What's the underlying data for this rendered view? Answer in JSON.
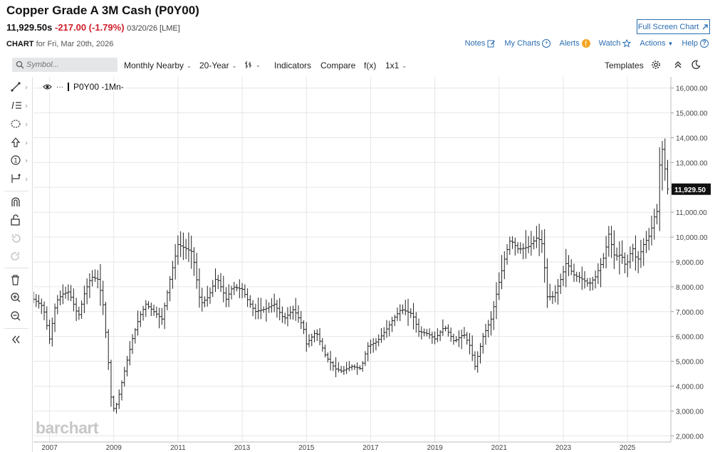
{
  "header": {
    "title": "Copper Grade A 3M Cash (P0Y00)",
    "price": "11,929.50s",
    "change": "-217.00 (-1.79%)",
    "date": "03/20/26 [LME]",
    "fullscreen_label": "Full Screen Chart",
    "chart_for_bold": "CHART",
    "chart_for_text": "for Fri, Mar 20th, 2026"
  },
  "actions": {
    "notes": "Notes",
    "my_charts": "My Charts",
    "alerts": "Alerts",
    "alert_badge": "!",
    "watch": "Watch",
    "actions": "Actions",
    "help": "Help"
  },
  "toolbar": {
    "symbol_placeholder": "Symbol...",
    "period": "Monthly Nearby",
    "range": "20-Year",
    "indicators": "Indicators",
    "compare": "Compare",
    "fx": "f(x)",
    "layout": "1x1",
    "templates": "Templates"
  },
  "series_label": "P0Y00 -1Mn-",
  "logo": "barchart",
  "colors": {
    "link": "#2a6db0",
    "down": "#d0202a",
    "bar": "#222222",
    "grid": "#e6e6e6"
  },
  "chart_data": {
    "type": "ohlc",
    "x_axis_labels": [
      "2007",
      "2009",
      "2011",
      "2013",
      "2015",
      "2017",
      "2019",
      "2021",
      "2023",
      "2025"
    ],
    "y_axis_labels": [
      "16,000.00",
      "15,000.00",
      "14,000.00",
      "13,000.00",
      "12,000.00",
      "11,000.00",
      "10,000.00",
      "9,000.00",
      "8,000.00",
      "7,000.00",
      "6,000.00",
      "5,000.00",
      "4,000.00",
      "3,000.00",
      "2,000.00"
    ],
    "ylim": [
      1750,
      16450
    ],
    "xlim": [
      2006.5,
      2026.35
    ],
    "last_price_label": "11,929.50",
    "last_price": 11929.5,
    "grid": true,
    "monthly_close_anchors": [
      [
        2006.5,
        7500
      ],
      [
        2006.8,
        7200
      ],
      [
        2007.0,
        5900
      ],
      [
        2007.2,
        7400
      ],
      [
        2007.4,
        7700
      ],
      [
        2007.6,
        7800
      ],
      [
        2007.9,
        6800
      ],
      [
        2008.1,
        7800
      ],
      [
        2008.3,
        8400
      ],
      [
        2008.5,
        8300
      ],
      [
        2008.65,
        7500
      ],
      [
        2008.8,
        5500
      ],
      [
        2008.95,
        3000
      ],
      [
        2009.1,
        3300
      ],
      [
        2009.35,
        4700
      ],
      [
        2009.6,
        6000
      ],
      [
        2009.8,
        6800
      ],
      [
        2010.0,
        7300
      ],
      [
        2010.25,
        7000
      ],
      [
        2010.5,
        6700
      ],
      [
        2010.75,
        8300
      ],
      [
        2011.0,
        9700
      ],
      [
        2011.15,
        9600
      ],
      [
        2011.45,
        9400
      ],
      [
        2011.7,
        7300
      ],
      [
        2011.95,
        7600
      ],
      [
        2012.2,
        8400
      ],
      [
        2012.5,
        7500
      ],
      [
        2012.7,
        8000
      ],
      [
        2013.0,
        7900
      ],
      [
        2013.2,
        7400
      ],
      [
        2013.4,
        7000
      ],
      [
        2013.7,
        7100
      ],
      [
        2014.0,
        7300
      ],
      [
        2014.3,
        6700
      ],
      [
        2014.6,
        7100
      ],
      [
        2014.9,
        6400
      ],
      [
        2015.0,
        5700
      ],
      [
        2015.3,
        6200
      ],
      [
        2015.6,
        5200
      ],
      [
        2015.9,
        4700
      ],
      [
        2016.1,
        4600
      ],
      [
        2016.4,
        4800
      ],
      [
        2016.7,
        4700
      ],
      [
        2016.9,
        5600
      ],
      [
        2017.2,
        5800
      ],
      [
        2017.5,
        6300
      ],
      [
        2017.7,
        6700
      ],
      [
        2017.95,
        7100
      ],
      [
        2018.3,
        6900
      ],
      [
        2018.5,
        6200
      ],
      [
        2018.8,
        6100
      ],
      [
        2019.0,
        5900
      ],
      [
        2019.3,
        6400
      ],
      [
        2019.6,
        5800
      ],
      [
        2019.9,
        6100
      ],
      [
        2020.1,
        5600
      ],
      [
        2020.25,
        4800
      ],
      [
        2020.5,
        6000
      ],
      [
        2020.75,
        6700
      ],
      [
        2020.95,
        7900
      ],
      [
        2021.2,
        9300
      ],
      [
        2021.35,
        9900
      ],
      [
        2021.6,
        9500
      ],
      [
        2021.9,
        9600
      ],
      [
        2022.2,
        10000
      ],
      [
        2022.35,
        9700
      ],
      [
        2022.5,
        7600
      ],
      [
        2022.7,
        7600
      ],
      [
        2022.95,
        8400
      ],
      [
        2023.1,
        9000
      ],
      [
        2023.3,
        8500
      ],
      [
        2023.6,
        8300
      ],
      [
        2023.8,
        8100
      ],
      [
        2024.0,
        8400
      ],
      [
        2024.3,
        9300
      ],
      [
        2024.4,
        10200
      ],
      [
        2024.6,
        9200
      ],
      [
        2024.8,
        9300
      ],
      [
        2024.95,
        8800
      ],
      [
        2025.15,
        9600
      ],
      [
        2025.3,
        9000
      ],
      [
        2025.5,
        9700
      ],
      [
        2025.7,
        10100
      ],
      [
        2025.85,
        10900
      ],
      [
        2025.95,
        11100
      ],
      [
        2026.0,
        12900
      ],
      [
        2026.05,
        13800
      ],
      [
        2026.15,
        13000
      ],
      [
        2026.22,
        11929.5
      ]
    ]
  }
}
